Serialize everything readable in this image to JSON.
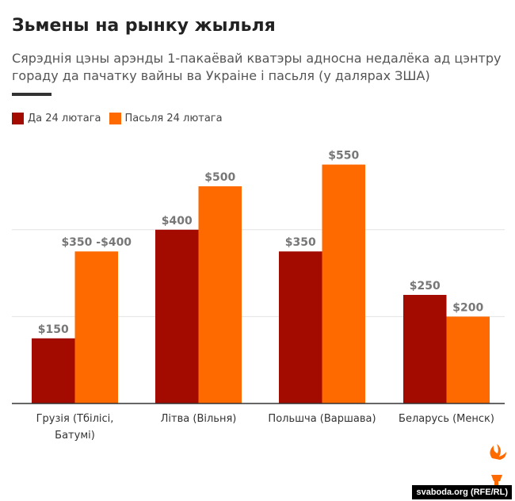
{
  "title": "Зьмены на рынку жыльля",
  "subtitle": "Сярэднія цэны арэнды 1-пакаёвай кватэры адносна недалёка ад цэнтру гораду да пачатку вайны ва Украіне і пасьля (у далярах ЗША)",
  "credit": "svaboda.org (RFE/RL)",
  "colors": {
    "before": "#a30b00",
    "after": "#ff6a00"
  },
  "chart_data": {
    "type": "bar",
    "categories": [
      [
        "Грузія (Тбілісі,",
        "Батумі)"
      ],
      [
        "Літва (Вільня)"
      ],
      [
        "Польшча (Варшава)"
      ],
      [
        "Беларусь (Менск)"
      ]
    ],
    "series": [
      {
        "name": "Да 24 лютага",
        "values": [
          150,
          400,
          350,
          250
        ],
        "labels": [
          "$150",
          "$400",
          "$350",
          "$250"
        ]
      },
      {
        "name": "Пасьля 24 лютага",
        "values": [
          350,
          500,
          550,
          200
        ],
        "labels": [
          "$350 -$400",
          "$500",
          "$550",
          "$200"
        ]
      }
    ],
    "ylim": [
      0,
      600
    ],
    "gridlines": [
      200,
      400
    ],
    "grid": true,
    "legend": "top-left"
  }
}
